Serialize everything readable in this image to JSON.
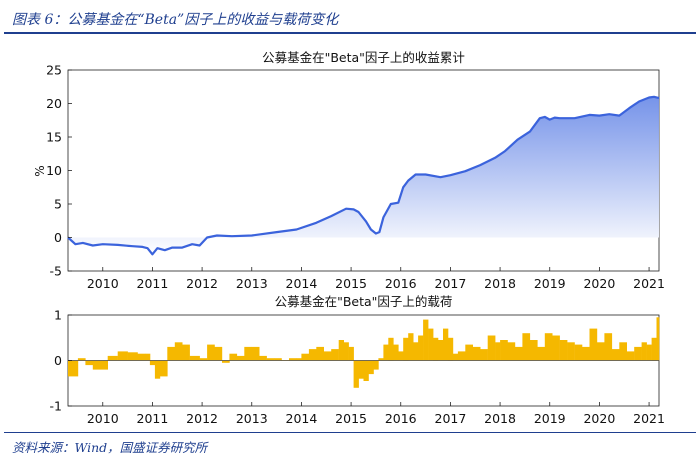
{
  "figure": {
    "title": "图表 6：公募基金在“Beta”因子上的收益与载荷变化",
    "source": "资料来源：Wind，国盛证券研究所"
  },
  "colors": {
    "line": "#3b63dc",
    "area_top": "#6f8ee8",
    "area_bottom": "#ffffff",
    "bar": "#f5b800",
    "accent": "#1f3f8f"
  },
  "chart_data": [
    {
      "type": "area",
      "title": "公募基金在\"Beta\"因子上的收益累计",
      "xlabel": "",
      "ylabel": "%",
      "xlim": [
        2009.3,
        2021.2
      ],
      "ylim": [
        -5,
        25
      ],
      "y_ticks": [
        -5,
        0,
        5,
        10,
        15,
        20,
        25
      ],
      "x_ticks": [
        2010,
        2011,
        2012,
        2013,
        2014,
        2015,
        2016,
        2017,
        2018,
        2019,
        2020,
        2021
      ],
      "grid": false,
      "series": [
        {
          "x": [
            2009.3,
            2009.45,
            2009.6,
            2009.8,
            2010.0,
            2010.3,
            2010.6,
            2010.8,
            2010.9,
            2011.0,
            2011.1,
            2011.25,
            2011.4,
            2011.6,
            2011.8,
            2011.95,
            2012.1,
            2012.3,
            2012.6,
            2013.0,
            2013.5,
            2013.9,
            2014.3,
            2014.6,
            2014.9,
            2015.05,
            2015.15,
            2015.3,
            2015.4,
            2015.5,
            2015.57,
            2015.65,
            2015.8,
            2015.95,
            2016.05,
            2016.15,
            2016.3,
            2016.5,
            2016.8,
            2017.0,
            2017.3,
            2017.6,
            2017.9,
            2018.1,
            2018.35,
            2018.6,
            2018.8,
            2018.9,
            2019.0,
            2019.1,
            2019.2,
            2019.5,
            2019.8,
            2020.0,
            2020.2,
            2020.4,
            2020.6,
            2020.8,
            2021.0,
            2021.1,
            2021.2
          ],
          "values": [
            0.0,
            -1.0,
            -0.8,
            -1.2,
            -1.0,
            -1.1,
            -1.3,
            -1.4,
            -1.6,
            -2.5,
            -1.6,
            -1.9,
            -1.5,
            -1.5,
            -1.0,
            -1.2,
            0.0,
            0.3,
            0.2,
            0.3,
            0.8,
            1.2,
            2.2,
            3.2,
            4.3,
            4.2,
            3.8,
            2.4,
            1.2,
            0.6,
            0.8,
            3.0,
            5.0,
            5.2,
            7.5,
            8.5,
            9.4,
            9.4,
            9.0,
            9.3,
            9.9,
            10.8,
            11.9,
            12.9,
            14.6,
            15.8,
            17.8,
            18.0,
            17.6,
            17.9,
            17.8,
            17.8,
            18.3,
            18.2,
            18.4,
            18.2,
            19.3,
            20.3,
            20.9,
            21.0,
            20.8
          ]
        }
      ]
    },
    {
      "type": "bar",
      "title": "公募基金在\"Beta\"因子上的载荷",
      "xlabel": "",
      "ylabel": "",
      "xlim": [
        2009.3,
        2021.2
      ],
      "ylim": [
        -1,
        1
      ],
      "y_ticks": [
        -1,
        0,
        1
      ],
      "x_ticks": [
        2010,
        2011,
        2012,
        2013,
        2014,
        2015,
        2016,
        2017,
        2018,
        2019,
        2020,
        2021
      ],
      "grid": false,
      "series": [
        {
          "x": [
            2009.3,
            2009.5,
            2009.65,
            2009.8,
            2009.95,
            2010.1,
            2010.3,
            2010.5,
            2010.7,
            2010.85,
            2010.95,
            2011.05,
            2011.15,
            2011.3,
            2011.45,
            2011.6,
            2011.75,
            2011.95,
            2012.1,
            2012.25,
            2012.4,
            2012.55,
            2012.7,
            2012.85,
            2013.0,
            2013.15,
            2013.3,
            2013.45,
            2013.6,
            2013.75,
            2013.9,
            2014.0,
            2014.15,
            2014.3,
            2014.45,
            2014.6,
            2014.75,
            2014.85,
            2014.95,
            2015.05,
            2015.15,
            2015.25,
            2015.35,
            2015.45,
            2015.55,
            2015.65,
            2015.75,
            2015.85,
            2015.95,
            2016.05,
            2016.15,
            2016.25,
            2016.35,
            2016.45,
            2016.55,
            2016.65,
            2016.75,
            2016.85,
            2016.95,
            2017.05,
            2017.15,
            2017.3,
            2017.45,
            2017.6,
            2017.75,
            2017.9,
            2018.0,
            2018.15,
            2018.3,
            2018.45,
            2018.6,
            2018.75,
            2018.9,
            2019.05,
            2019.2,
            2019.35,
            2019.5,
            2019.65,
            2019.8,
            2019.95,
            2020.1,
            2020.25,
            2020.4,
            2020.55,
            2020.7,
            2020.85,
            2020.95,
            2021.05,
            2021.15
          ],
          "values": [
            -0.35,
            0.05,
            -0.1,
            -0.2,
            -0.2,
            0.1,
            0.2,
            0.18,
            0.15,
            0.15,
            -0.1,
            -0.4,
            -0.35,
            0.3,
            0.4,
            0.35,
            0.1,
            0.05,
            0.35,
            0.3,
            -0.05,
            0.15,
            0.1,
            0.3,
            0.3,
            0.1,
            0.05,
            0.05,
            0.0,
            0.05,
            0.05,
            0.15,
            0.25,
            0.3,
            0.2,
            0.25,
            0.45,
            0.4,
            0.3,
            -0.6,
            -0.4,
            -0.45,
            -0.3,
            -0.2,
            0.05,
            0.35,
            0.5,
            0.35,
            0.2,
            0.5,
            0.6,
            0.4,
            0.55,
            0.9,
            0.7,
            0.5,
            0.45,
            0.7,
            0.5,
            0.15,
            0.2,
            0.35,
            0.3,
            0.25,
            0.55,
            0.4,
            0.45,
            0.4,
            0.3,
            0.6,
            0.45,
            0.3,
            0.6,
            0.55,
            0.45,
            0.4,
            0.35,
            0.3,
            0.7,
            0.4,
            0.6,
            0.25,
            0.4,
            0.2,
            0.3,
            0.4,
            0.35,
            0.5,
            0.95
          ]
        }
      ]
    }
  ]
}
